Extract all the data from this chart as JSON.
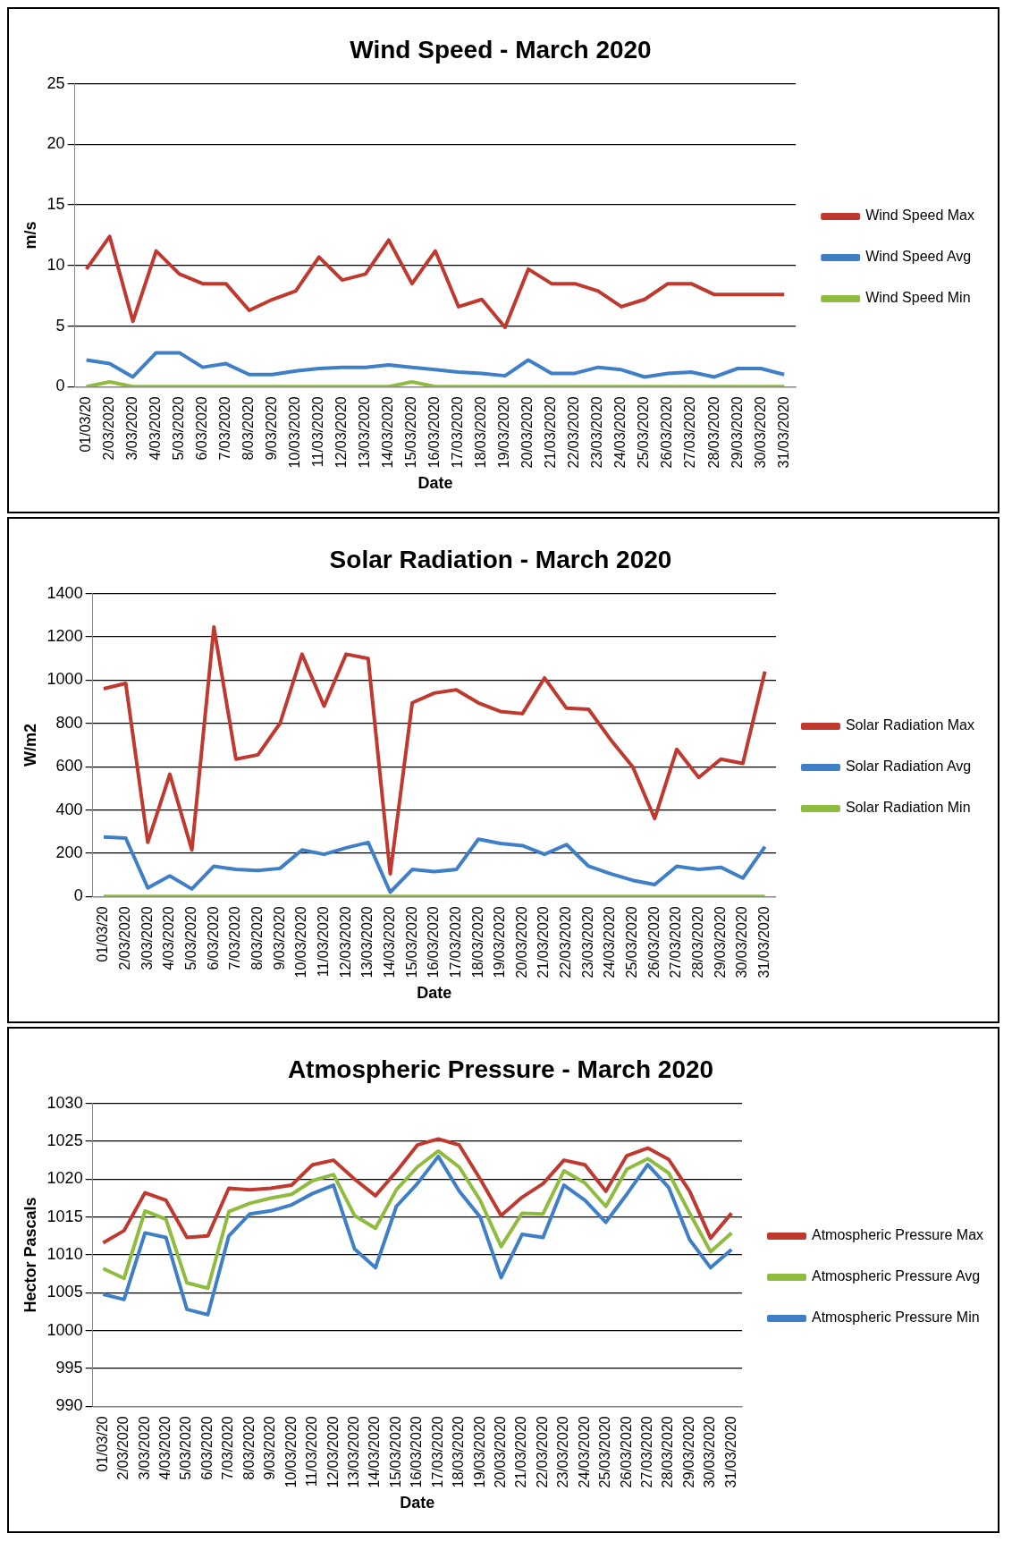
{
  "chart_data": [
    {
      "type": "line",
      "title": "Wind Speed - March 2020",
      "xlabel": "Date",
      "ylabel": "m/s",
      "categories": [
        "01/03/20",
        "2/03/2020",
        "3/03/2020",
        "4/03/2020",
        "5/03/2020",
        "6/03/2020",
        "7/03/2020",
        "8/03/2020",
        "9/03/2020",
        "10/03/2020",
        "11/03/2020",
        "12/03/2020",
        "13/03/2020",
        "14/03/2020",
        "15/03/2020",
        "16/03/2020",
        "17/03/2020",
        "18/03/2020",
        "19/03/2020",
        "20/03/2020",
        "21/03/2020",
        "22/03/2020",
        "23/03/2020",
        "24/03/2020",
        "25/03/2020",
        "26/03/2020",
        "27/03/2020",
        "28/03/2020",
        "29/03/2020",
        "30/03/2020",
        "31/03/2020"
      ],
      "ylim": [
        0,
        25
      ],
      "yticks": [
        0,
        5,
        10,
        15,
        20,
        25
      ],
      "grid": "y",
      "legend": "right",
      "marker": "none",
      "line_style": "solid",
      "series": [
        {
          "name": "Wind Speed Max",
          "color": "#c0392f",
          "values": [
            9.7,
            12.4,
            5.4,
            11.2,
            9.3,
            8.5,
            8.5,
            6.3,
            7.2,
            7.9,
            10.7,
            8.8,
            9.3,
            12.1,
            8.5,
            11.2,
            6.6,
            7.2,
            4.9,
            9.7,
            8.5,
            8.5,
            7.9,
            6.6,
            7.2,
            8.5,
            8.5,
            7.6,
            7.6,
            7.6,
            7.6
          ]
        },
        {
          "name": "Wind Speed Avg",
          "color": "#3f7fc8",
          "values": [
            2.2,
            1.9,
            0.8,
            2.8,
            2.8,
            1.6,
            1.9,
            1.0,
            1.0,
            1.3,
            1.5,
            1.6,
            1.6,
            1.8,
            1.6,
            1.4,
            1.2,
            1.1,
            0.9,
            2.2,
            1.1,
            1.1,
            1.6,
            1.4,
            0.8,
            1.1,
            1.2,
            0.8,
            1.5,
            1.5,
            1.0
          ]
        },
        {
          "name": "Wind Speed Min",
          "color": "#8fbc3f",
          "values": [
            0,
            0.4,
            0,
            0,
            0,
            0,
            0,
            0,
            0,
            0,
            0,
            0,
            0,
            0,
            0.4,
            0,
            0,
            0,
            0,
            0,
            0,
            0,
            0,
            0,
            0,
            0,
            0,
            0,
            0,
            0,
            0
          ]
        }
      ]
    },
    {
      "type": "line",
      "title": "Solar Radiation - March 2020",
      "xlabel": "Date",
      "ylabel": "W/m2",
      "categories": [
        "01/03/20",
        "2/03/2020",
        "3/03/2020",
        "4/03/2020",
        "5/03/2020",
        "6/03/2020",
        "7/03/2020",
        "8/03/2020",
        "9/03/2020",
        "10/03/2020",
        "11/03/2020",
        "12/03/2020",
        "13/03/2020",
        "14/03/2020",
        "15/03/2020",
        "16/03/2020",
        "17/03/2020",
        "18/03/2020",
        "19/03/2020",
        "20/03/2020",
        "21/03/2020",
        "22/03/2020",
        "23/03/2020",
        "24/03/2020",
        "25/03/2020",
        "26/03/2020",
        "27/03/2020",
        "28/03/2020",
        "29/03/2020",
        "30/03/2020",
        "31/03/2020"
      ],
      "ylim": [
        0,
        1400
      ],
      "yticks": [
        0,
        200,
        400,
        600,
        800,
        1000,
        1200,
        1400
      ],
      "grid": "y",
      "legend": "right",
      "marker": "none",
      "line_style": "solid",
      "series": [
        {
          "name": "Solar Radiation Max",
          "color": "#c0392f",
          "values": [
            960,
            985,
            250,
            565,
            215,
            1245,
            635,
            655,
            800,
            1120,
            880,
            1120,
            1100,
            105,
            895,
            940,
            955,
            895,
            855,
            845,
            1010,
            870,
            865,
            725,
            600,
            360,
            680,
            550,
            635,
            615,
            1040
          ]
        },
        {
          "name": "Solar Radiation Avg",
          "color": "#3f7fc8",
          "values": [
            275,
            270,
            40,
            95,
            35,
            140,
            125,
            120,
            130,
            215,
            195,
            225,
            250,
            20,
            125,
            115,
            125,
            265,
            245,
            235,
            195,
            240,
            140,
            105,
            75,
            55,
            140,
            125,
            135,
            85,
            230
          ]
        },
        {
          "name": "Solar Radiation Min",
          "color": "#8fbc3f",
          "values": [
            0,
            0,
            0,
            0,
            0,
            0,
            0,
            0,
            0,
            0,
            0,
            0,
            0,
            0,
            0,
            0,
            0,
            0,
            0,
            0,
            0,
            0,
            0,
            0,
            0,
            0,
            0,
            0,
            0,
            0,
            0
          ]
        }
      ]
    },
    {
      "type": "line",
      "title": "Atmospheric Pressure - March 2020",
      "xlabel": "Date",
      "ylabel": "Hector Pascals",
      "categories": [
        "01/03/20",
        "2/03/2020",
        "3/03/2020",
        "4/03/2020",
        "5/03/2020",
        "6/03/2020",
        "7/03/2020",
        "8/03/2020",
        "9/03/2020",
        "10/03/2020",
        "11/03/2020",
        "12/03/2020",
        "13/03/2020",
        "14/03/2020",
        "15/03/2020",
        "16/03/2020",
        "17/03/2020",
        "18/03/2020",
        "19/03/2020",
        "20/03/2020",
        "21/03/2020",
        "22/03/2020",
        "23/03/2020",
        "24/03/2020",
        "25/03/2020",
        "26/03/2020",
        "27/03/2020",
        "28/03/2020",
        "29/03/2020",
        "30/03/2020",
        "31/03/2020"
      ],
      "ylim": [
        990,
        1030
      ],
      "yticks": [
        990,
        995,
        1000,
        1005,
        1010,
        1015,
        1020,
        1025,
        1030
      ],
      "grid": "y",
      "legend": "right",
      "marker": "none",
      "line_style": "solid",
      "series": [
        {
          "name": "Atmospheric Pressure Max",
          "color": "#c0392f",
          "values": [
            1011.6,
            1013.2,
            1018.2,
            1017.2,
            1012.3,
            1012.5,
            1018.8,
            1018.6,
            1018.8,
            1019.2,
            1021.9,
            1022.5,
            1020.0,
            1017.8,
            1021.0,
            1024.5,
            1025.3,
            1024.5,
            1020.0,
            1015.2,
            1017.6,
            1019.4,
            1022.5,
            1021.9,
            1018.4,
            1023.1,
            1024.1,
            1022.6,
            1018.4,
            1012.2,
            1015.5
          ]
        },
        {
          "name": "Atmospheric Pressure Avg",
          "color": "#8fbc3f",
          "values": [
            1008.2,
            1006.9,
            1015.8,
            1014.7,
            1006.3,
            1005.6,
            1015.7,
            1016.8,
            1017.5,
            1018.0,
            1019.8,
            1020.6,
            1015.2,
            1013.5,
            1018.6,
            1021.6,
            1023.7,
            1021.6,
            1017.2,
            1011.1,
            1015.5,
            1015.4,
            1021.1,
            1019.5,
            1016.4,
            1021.3,
            1022.7,
            1020.8,
            1015.5,
            1010.4,
            1012.9
          ]
        },
        {
          "name": "Atmospheric Pressure Min",
          "color": "#3f7fc8",
          "values": [
            1004.8,
            1004.1,
            1012.9,
            1012.3,
            1002.8,
            1002.1,
            1012.5,
            1015.4,
            1015.8,
            1016.6,
            1018.1,
            1019.2,
            1010.8,
            1008.3,
            1016.4,
            1019.4,
            1023.0,
            1018.4,
            1015.0,
            1007.0,
            1012.7,
            1012.3,
            1019.2,
            1017.2,
            1014.3,
            1018.0,
            1021.9,
            1018.9,
            1012.0,
            1008.3,
            1010.7
          ]
        }
      ]
    }
  ]
}
